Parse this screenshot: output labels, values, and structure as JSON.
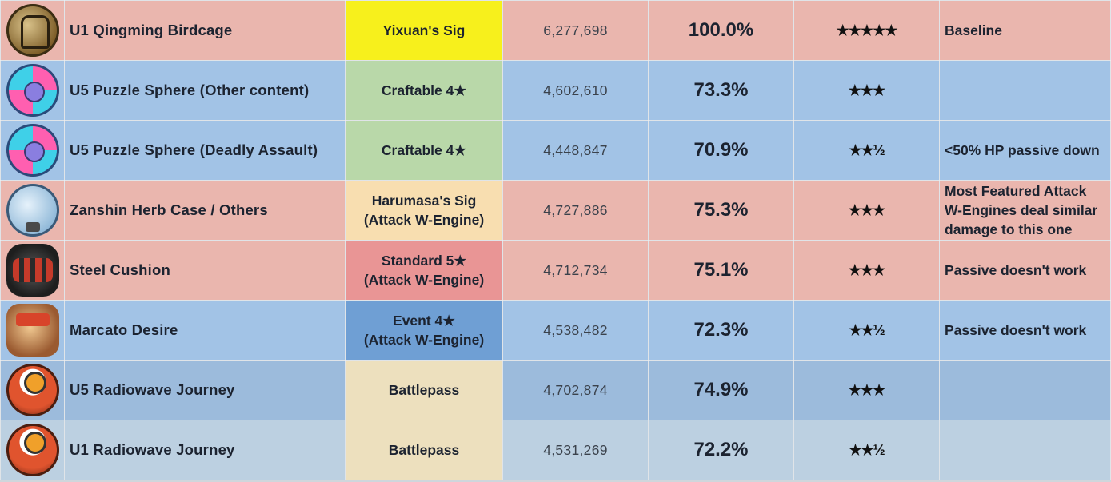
{
  "rows": [
    {
      "name": "U1 Qingming Birdcage",
      "source_lines": [
        "Yixuan's Sig"
      ],
      "damage": "6,277,698",
      "percent": "100.0%",
      "rating": "★★★★★",
      "note_lines": [
        "Baseline"
      ],
      "icon": "birdcage-icon"
    },
    {
      "name": "U5 Puzzle Sphere (Other content)",
      "source_lines": [
        "Craftable 4★"
      ],
      "damage": "4,602,610",
      "percent": "73.3%",
      "rating": "★★★",
      "note_lines": [],
      "icon": "puzzle-sphere-icon"
    },
    {
      "name": "U5 Puzzle Sphere (Deadly Assault)",
      "source_lines": [
        "Craftable 4★"
      ],
      "damage": "4,448,847",
      "percent": "70.9%",
      "rating": "★★½",
      "note_lines": [
        "<50% HP passive down"
      ],
      "icon": "puzzle-sphere-icon"
    },
    {
      "name": "Zanshin Herb Case / Others",
      "source_lines": [
        "Harumasa's Sig",
        "(Attack W-Engine)"
      ],
      "damage": "4,727,886",
      "percent": "75.3%",
      "rating": "★★★",
      "note_lines": [
        "Most Featured Attack",
        "W-Engines deal similar",
        "damage to this one"
      ],
      "icon": "herb-case-icon"
    },
    {
      "name": "Steel Cushion",
      "source_lines": [
        "Standard 5★",
        "(Attack W-Engine)"
      ],
      "damage": "4,712,734",
      "percent": "75.1%",
      "rating": "★★★",
      "note_lines": [
        "Passive doesn't work"
      ],
      "icon": "steel-cushion-icon"
    },
    {
      "name": "Marcato Desire",
      "source_lines": [
        "Event 4★",
        "(Attack W-Engine)"
      ],
      "damage": "4,538,482",
      "percent": "72.3%",
      "rating": "★★½",
      "note_lines": [
        "Passive doesn't work"
      ],
      "icon": "marcato-desire-icon"
    },
    {
      "name": "U5 Radiowave Journey",
      "source_lines": [
        "Battlepass"
      ],
      "damage": "4,702,874",
      "percent": "74.9%",
      "rating": "★★★",
      "note_lines": [],
      "icon": "radiowave-journey-icon"
    },
    {
      "name": "U1 Radiowave Journey",
      "source_lines": [
        "Battlepass"
      ],
      "damage": "4,531,269",
      "percent": "72.2%",
      "rating": "★★½",
      "note_lines": [],
      "icon": "radiowave-journey-icon"
    }
  ]
}
